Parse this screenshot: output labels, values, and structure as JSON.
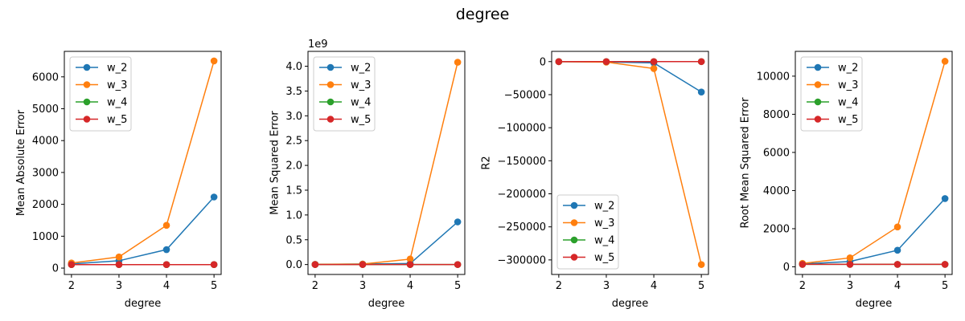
{
  "figure": {
    "title": "degree",
    "colors": {
      "w_2": "#1f77b4",
      "w_3": "#ff7f0e",
      "w_4": "#2ca02c",
      "w_5": "#d62728"
    }
  },
  "chart_data": [
    {
      "type": "line",
      "xlabel": "degree",
      "ylabel": "Mean Absolute Error",
      "x": [
        2,
        3,
        4,
        5
      ],
      "xlim": [
        1.85,
        5.15
      ],
      "ylim": [
        -200,
        6800
      ],
      "yticks": [
        0,
        1000,
        2000,
        3000,
        4000,
        5000,
        6000
      ],
      "ytick_labels": [
        "0",
        "1000",
        "2000",
        "3000",
        "4000",
        "5000",
        "6000"
      ],
      "offset_label": "",
      "legend": "upper left",
      "series": [
        {
          "name": "w_2",
          "values": [
            130,
            230,
            580,
            2230
          ]
        },
        {
          "name": "w_3",
          "values": [
            160,
            350,
            1340,
            6500
          ]
        },
        {
          "name": "w_4",
          "values": [
            110,
            110,
            110,
            110
          ]
        },
        {
          "name": "w_5",
          "values": [
            110,
            110,
            110,
            110
          ]
        }
      ]
    },
    {
      "type": "line",
      "xlabel": "degree",
      "ylabel": "Mean Squared Error",
      "x": [
        2,
        3,
        4,
        5
      ],
      "xlim": [
        1.85,
        5.15
      ],
      "ylim": [
        -0.2,
        4.3
      ],
      "yticks": [
        0,
        0.5,
        1.0,
        1.5,
        2.0,
        2.5,
        3.0,
        3.5,
        4.0
      ],
      "ytick_labels": [
        "0.0",
        "0.5",
        "1.0",
        "1.5",
        "2.0",
        "2.5",
        "3.0",
        "3.5",
        "4.0"
      ],
      "offset_label": "1e9",
      "legend": "upper left",
      "series": [
        {
          "name": "w_2",
          "values": [
            0.003,
            0.01,
            0.02,
            0.86
          ]
        },
        {
          "name": "w_3",
          "values": [
            0.004,
            0.01,
            0.11,
            4.08
          ]
        },
        {
          "name": "w_4",
          "values": [
            0.0,
            0.0,
            0.0,
            0.0
          ]
        },
        {
          "name": "w_5",
          "values": [
            0.0,
            0.0,
            0.0,
            0.0
          ]
        }
      ]
    },
    {
      "type": "line",
      "xlabel": "degree",
      "ylabel": "R2",
      "x": [
        2,
        3,
        4,
        5
      ],
      "xlim": [
        1.85,
        5.15
      ],
      "ylim": [
        -322000,
        15500
      ],
      "yticks": [
        0,
        -50000,
        -100000,
        -150000,
        -200000,
        -250000,
        -300000
      ],
      "ytick_labels": [
        "0",
        "−50000",
        "−100000",
        "−150000",
        "−200000",
        "−250000",
        "−300000"
      ],
      "offset_label": "",
      "legend": "lower left",
      "series": [
        {
          "name": "w_2",
          "values": [
            -100,
            -500,
            -2000,
            -46000
          ]
        },
        {
          "name": "w_3",
          "values": [
            -150,
            -800,
            -10500,
            -307000
          ]
        },
        {
          "name": "w_4",
          "values": [
            0,
            0,
            0,
            0
          ]
        },
        {
          "name": "w_5",
          "values": [
            0,
            0,
            0,
            0
          ]
        }
      ]
    },
    {
      "type": "line",
      "xlabel": "degree",
      "ylabel": "Root Mean Squared Error",
      "x": [
        2,
        3,
        4,
        5
      ],
      "xlim": [
        1.85,
        5.15
      ],
      "ylim": [
        -400,
        11300
      ],
      "yticks": [
        0,
        2000,
        4000,
        6000,
        8000,
        10000
      ],
      "ytick_labels": [
        "0",
        "2000",
        "4000",
        "6000",
        "8000",
        "10000"
      ],
      "offset_label": "",
      "legend": "upper left",
      "series": [
        {
          "name": "w_2",
          "values": [
            150,
            280,
            870,
            3580
          ]
        },
        {
          "name": "w_3",
          "values": [
            180,
            470,
            2090,
            10780
          ]
        },
        {
          "name": "w_4",
          "values": [
            130,
            130,
            130,
            130
          ]
        },
        {
          "name": "w_5",
          "values": [
            130,
            130,
            130,
            130
          ]
        }
      ]
    }
  ]
}
